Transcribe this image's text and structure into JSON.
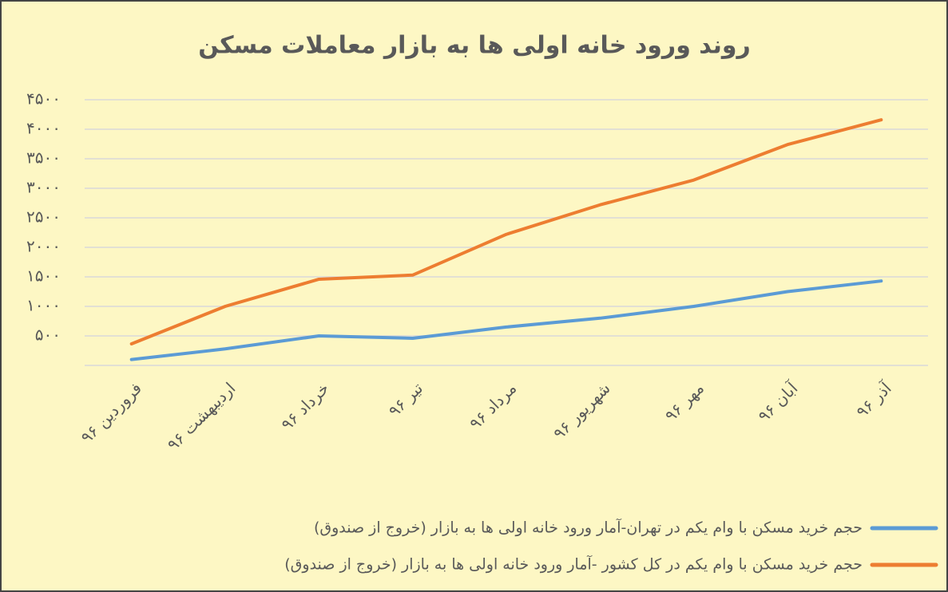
{
  "chart_data": {
    "type": "line",
    "title": "روند ورود خانه اولی ها به بازار معاملات مسکن",
    "categories": [
      "فروردین ۹۶",
      "اردیبهشت ۹۶",
      "خرداد ۹۶",
      "تیر ۹۶",
      "مرداد ۹۶",
      "شهریور ۹۶",
      "مهر ۹۶",
      "آبان ۹۶",
      "آذر ۹۶"
    ],
    "series": [
      {
        "name": "حجم خرید مسکن با وام یکم در تهران-آمار ورود خانه اولی ها به بازار (خروج از صندوق)",
        "color": "#5b9bd5",
        "values": [
          100,
          280,
          500,
          460,
          650,
          800,
          1000,
          1250,
          1430
        ]
      },
      {
        "name": "حجم خرید مسکن با وام یکم در کل کشور -آمار ورود خانه اولی ها به بازار (خروج از صندوق)",
        "color": "#ed7d31",
        "values": [
          365,
          1000,
          1460,
          1530,
          2220,
          2720,
          3140,
          3740,
          4160
        ]
      }
    ],
    "ylim": [
      0,
      4500
    ],
    "yticks": [
      {
        "value": 500,
        "label": "۵۰۰"
      },
      {
        "value": 1000,
        "label": "۱۰۰۰"
      },
      {
        "value": 1500,
        "label": "۱۵۰۰"
      },
      {
        "value": 2000,
        "label": "۲۰۰۰"
      },
      {
        "value": 2500,
        "label": "۲۵۰۰"
      },
      {
        "value": 3000,
        "label": "۳۰۰۰"
      },
      {
        "value": 3500,
        "label": "۳۵۰۰"
      },
      {
        "value": 4000,
        "label": "۴۰۰۰"
      },
      {
        "value": 4500,
        "label": "۴۵۰۰"
      }
    ],
    "grid": true
  }
}
